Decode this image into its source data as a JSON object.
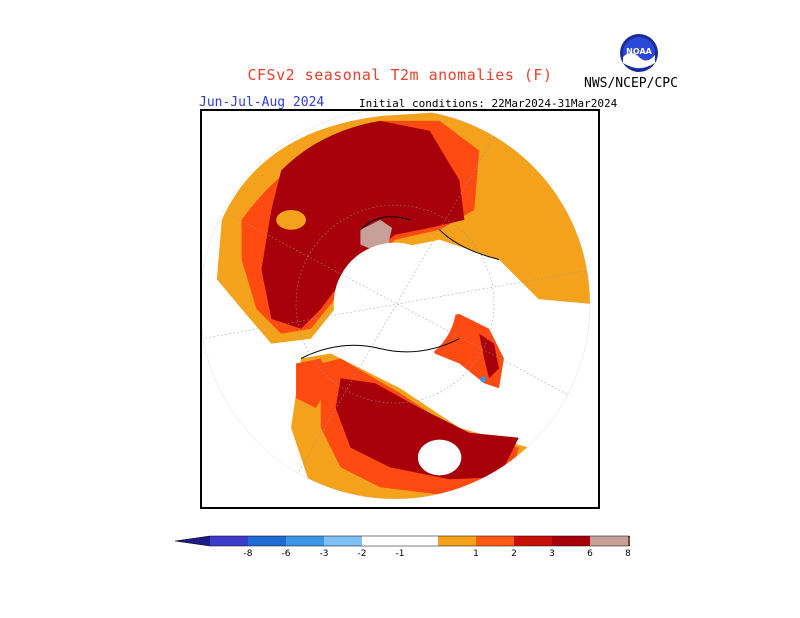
{
  "header": {
    "title": "CFSv2 seasonal T2m anomalies (F)",
    "season": "Jun-Jul-Aug 2024",
    "initial_conditions": "Initial conditions: 22Mar2024-31Mar2024",
    "agency": "NWS/NCEP/CPC",
    "logo_text": "NOAA"
  },
  "legend": {
    "labels": [
      "-8",
      "-6",
      "-3",
      "-2",
      "-1",
      "1",
      "2",
      "3",
      "6",
      "8"
    ],
    "colors": {
      "below_8": "#1e1a8a",
      "m8_m6": "#3c3ccb",
      "m6_m3": "#1f6bd4",
      "m3_m2": "#3c96e8",
      "m2_m1": "#7ec0f6",
      "m1_1": "#ffffff",
      "p1_p2": "#f4a11c",
      "p2_p3": "#ff5a14",
      "p3_p6": "#c80f08",
      "p6_p8": "#a8000a",
      "p8_p8": "#c8a09a",
      "above_8": "#7a4a3a"
    }
  },
  "map": {
    "projection": "polar-stereographic-north",
    "colors": {
      "orange": "#f4a11c",
      "redorange": "#ff4a12",
      "darkred": "#a8000a",
      "pinkbrown": "#c8a09a",
      "blue": "#3c96e8"
    }
  }
}
